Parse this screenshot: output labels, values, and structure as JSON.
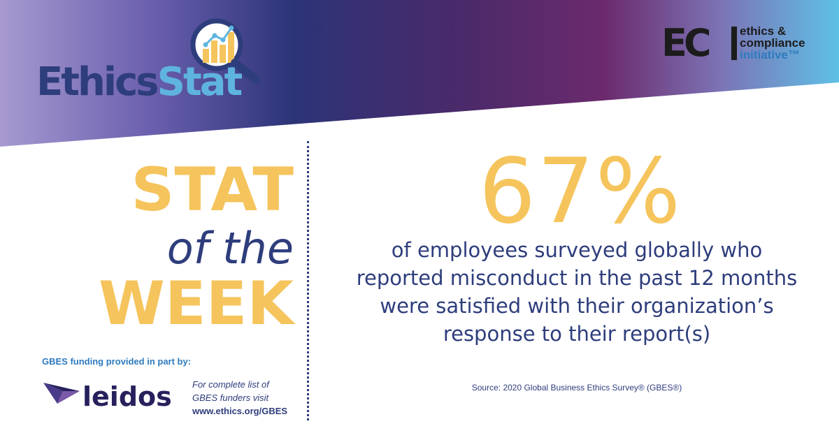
{
  "header": {
    "brand": {
      "part1": "Ethics",
      "part2": "Stat"
    },
    "eci": {
      "letters": "EC",
      "line1": "ethics &",
      "line2": "compliance",
      "line3": "initiative™"
    },
    "colors": {
      "purple": "#5b2a6e",
      "navy": "#2e3d7c",
      "light_blue": "#5fb4df",
      "lavender": "#9b8fc8"
    }
  },
  "title": {
    "stat": "STAT",
    "of_the": "of the",
    "week": "WEEK"
  },
  "funding": {
    "label": "GBES funding provided in part by:",
    "sponsor": "leidos",
    "note_line1": "For complete list of",
    "note_line2": "GBES funders visit",
    "url": "www.ethics.org/GBES"
  },
  "stat": {
    "value": "67%",
    "desc_lines": [
      "of employees surveyed globally who",
      "reported misconduct in the past 12 months",
      "were satisfied with their organization’s",
      "response to their report(s)"
    ],
    "source": "Source: 2020 Global Business Ethics Survey® (GBES®)"
  },
  "accent_colors": {
    "gold": "#f5c45c",
    "navy": "#2e3d7c"
  }
}
